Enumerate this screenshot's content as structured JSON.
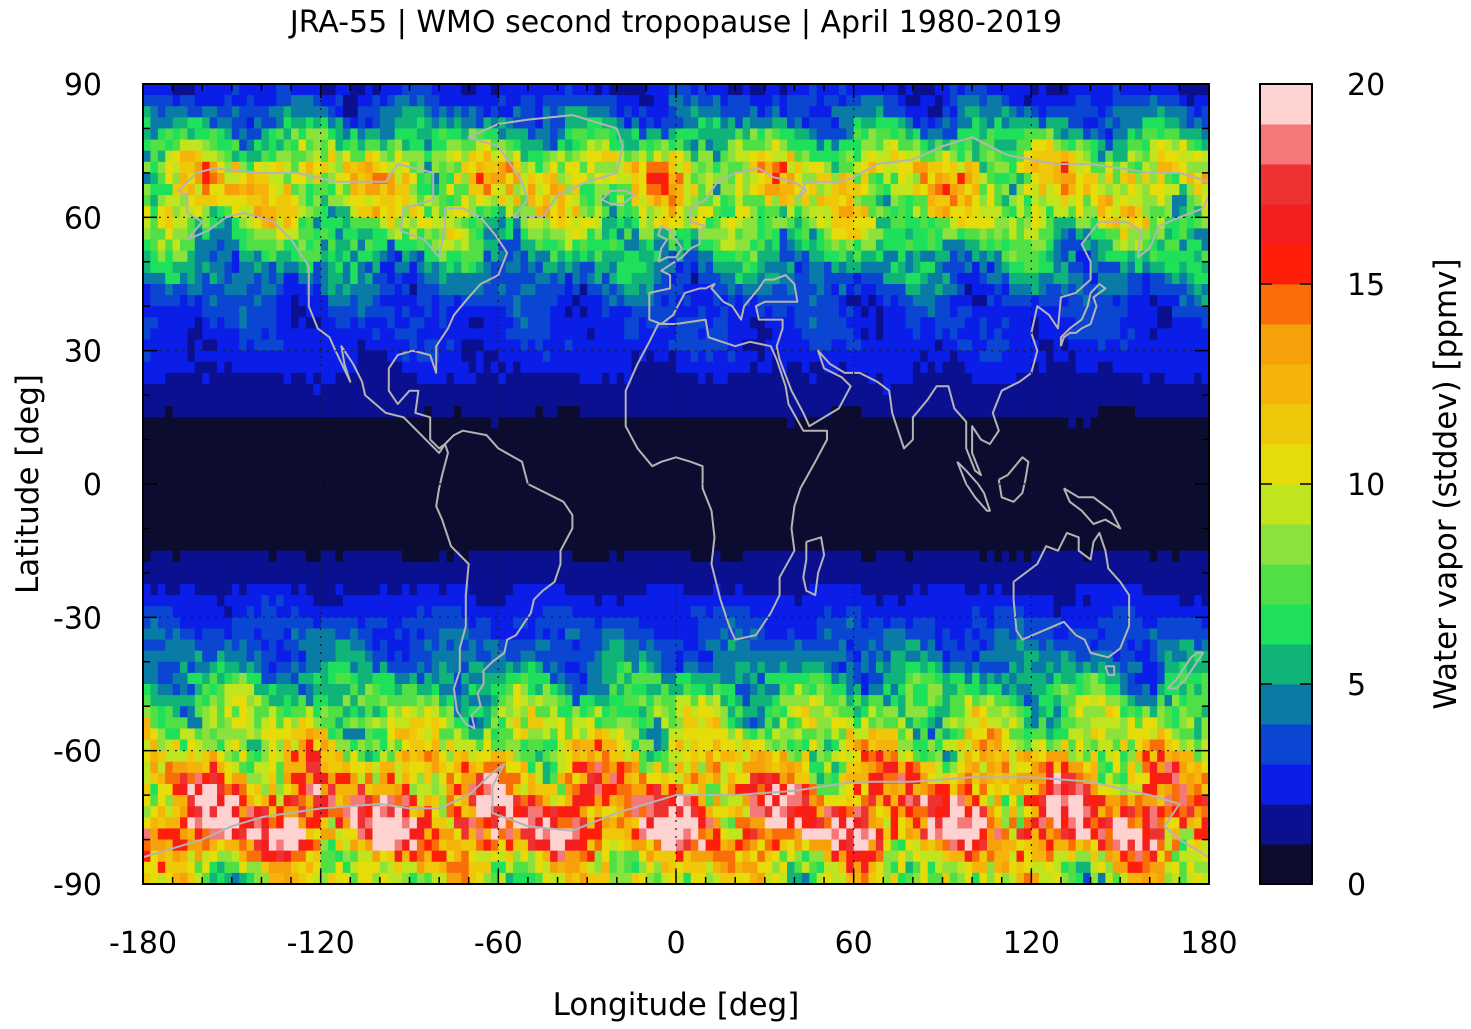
{
  "chart_data": {
    "type": "heatmap",
    "title": "JRA-55 | WMO second tropopause | April 1980-2019",
    "xlabel": "Longitude [deg]",
    "ylabel": "Latitude [deg]",
    "xlim": [
      -180,
      180
    ],
    "ylim": [
      -90,
      90
    ],
    "x_ticks": [
      -180,
      -120,
      -60,
      0,
      60,
      120,
      180
    ],
    "y_ticks": [
      90,
      60,
      30,
      0,
      -30,
      -60,
      -90
    ],
    "grid": true,
    "grid_style": "dotted",
    "map_overlay": "coastlines",
    "coastline_color": "#b4b4b4",
    "colorbar": {
      "label": "Water vapor (stddev) [ppmv]",
      "range": [
        0,
        20
      ],
      "ticks": [
        0,
        5,
        10,
        15,
        20
      ],
      "placement": "right",
      "levels": [
        {
          "value": 0.5,
          "color": "#0c0c30"
        },
        {
          "value": 1.5,
          "color": "#0a108f"
        },
        {
          "value": 2.5,
          "color": "#0a1ee8"
        },
        {
          "value": 3.5,
          "color": "#0a46d2"
        },
        {
          "value": 4.5,
          "color": "#0a7aa6"
        },
        {
          "value": 5.5,
          "color": "#10b478"
        },
        {
          "value": 6.5,
          "color": "#1ee05a"
        },
        {
          "value": 7.5,
          "color": "#50e046"
        },
        {
          "value": 8.5,
          "color": "#8ce23c"
        },
        {
          "value": 9.5,
          "color": "#c0e41e"
        },
        {
          "value": 10.5,
          "color": "#e6dc0a"
        },
        {
          "value": 11.5,
          "color": "#f0c80a"
        },
        {
          "value": 12.5,
          "color": "#f6b40a"
        },
        {
          "value": 13.5,
          "color": "#f6a00a"
        },
        {
          "value": 14.5,
          "color": "#fa6e0a"
        },
        {
          "value": 15.5,
          "color": "#ff1e0a"
        },
        {
          "value": 16.5,
          "color": "#f51e1e"
        },
        {
          "value": 17.5,
          "color": "#ee3232"
        },
        {
          "value": 18.5,
          "color": "#f57878"
        },
        {
          "value": 19.5,
          "color": "#ffd2d2"
        }
      ]
    },
    "zonal_pattern": [
      {
        "lat": 90,
        "value": 2
      },
      {
        "lat": 80,
        "value": 5
      },
      {
        "lat": 70,
        "value": 11
      },
      {
        "lat": 60,
        "value": 9
      },
      {
        "lat": 50,
        "value": 5
      },
      {
        "lat": 40,
        "value": 3
      },
      {
        "lat": 30,
        "value": 2.6
      },
      {
        "lat": 20,
        "value": 1.5
      },
      {
        "lat": 10,
        "value": 0.5
      },
      {
        "lat": 0,
        "value": 0.4
      },
      {
        "lat": -10,
        "value": 0.5
      },
      {
        "lat": -20,
        "value": 1.4
      },
      {
        "lat": -30,
        "value": 3
      },
      {
        "lat": -40,
        "value": 4.2
      },
      {
        "lat": -50,
        "value": 7.5
      },
      {
        "lat": -60,
        "value": 10
      },
      {
        "lat": -70,
        "value": 14.5
      },
      {
        "lat": -78,
        "value": 17.5
      },
      {
        "lat": -85,
        "value": 11
      },
      {
        "lat": -90,
        "value": 9
      }
    ]
  }
}
